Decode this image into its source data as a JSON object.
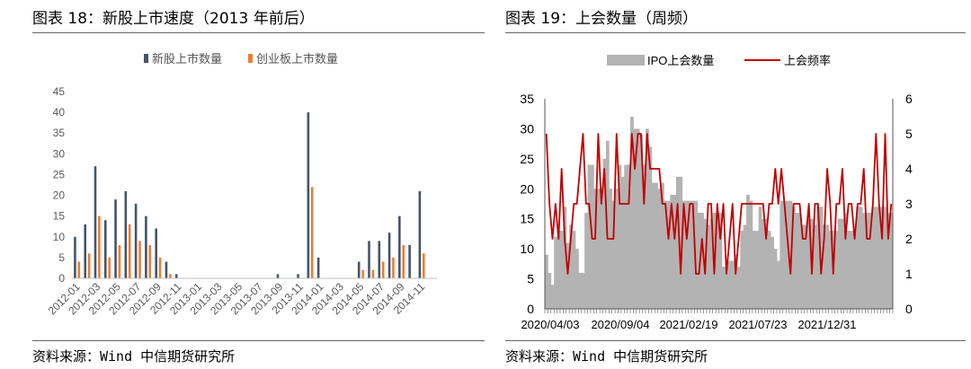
{
  "left_panel": {
    "title": "图表 18：新股上市速度（2013 年前后）",
    "source": "资料来源：Wind  中信期货研究所"
  },
  "right_panel": {
    "title": "图表 19：上会数量（周频）",
    "source": "资料来源：Wind  中信期货研究所"
  },
  "colors": {
    "dark_bar": "#44546a",
    "orange_bar": "#ed7d31",
    "gray_area": "#b3b3b3",
    "red_line": "#c00000"
  },
  "chart_data": [
    {
      "type": "bar",
      "title": "",
      "legend_position": "top",
      "ylim": [
        0,
        45
      ],
      "yticks": [
        0,
        5,
        10,
        15,
        20,
        25,
        30,
        35,
        40,
        45
      ],
      "x_tick_labels": [
        "2012-01",
        "2012-03",
        "2012-05",
        "2012-07",
        "2012-09",
        "2012-11",
        "2013-01",
        "2013-03",
        "2013-05",
        "2013-07",
        "2013-09",
        "2013-11",
        "2014-01",
        "2014-03",
        "2014-05",
        "2014-07",
        "2014-09",
        "2014-11"
      ],
      "categories": [
        "2012-01",
        "2012-02",
        "2012-03",
        "2012-04",
        "2012-05",
        "2012-06",
        "2012-07",
        "2012-08",
        "2012-09",
        "2012-10",
        "2012-11",
        "2012-12",
        "2013-01",
        "2013-02",
        "2013-03",
        "2013-04",
        "2013-05",
        "2013-06",
        "2013-07",
        "2013-08",
        "2013-09",
        "2013-10",
        "2013-11",
        "2013-12",
        "2014-01",
        "2014-02",
        "2014-03",
        "2014-04",
        "2014-05",
        "2014-06",
        "2014-07",
        "2014-08",
        "2014-09",
        "2014-10",
        "2014-11",
        "2014-12"
      ],
      "series": [
        {
          "name": "新股上市数量",
          "values": [
            10,
            13,
            27,
            14,
            19,
            21,
            18,
            15,
            12,
            4,
            1,
            0,
            0,
            0,
            0,
            0,
            0,
            0,
            0,
            0,
            1,
            0,
            1,
            40,
            5,
            0,
            0,
            0,
            4,
            9,
            9,
            11,
            15,
            8,
            21,
            0
          ]
        },
        {
          "name": "创业板上市数量",
          "values": [
            4,
            6,
            15,
            5,
            8,
            13,
            9,
            8,
            5,
            1,
            0,
            0,
            0,
            0,
            0,
            0,
            0,
            0,
            0,
            0,
            0,
            0,
            0,
            22,
            0,
            0,
            0,
            0,
            2,
            2,
            4,
            5,
            8,
            0,
            6,
            0
          ]
        }
      ]
    },
    {
      "type": "bar+line",
      "title": "",
      "legend_position": "top",
      "y_left": [
        0,
        35
      ],
      "y_left_ticks": [
        0,
        5,
        10,
        15,
        20,
        25,
        30,
        35
      ],
      "y_right": [
        0,
        6
      ],
      "y_right_ticks": [
        0,
        1,
        2,
        3,
        4,
        5,
        6
      ],
      "x_tick_labels": [
        "2020/04/03",
        "2020/09/04",
        "2021/02/19",
        "2021/07/23",
        "2021/12/31"
      ],
      "series": [
        {
          "name": "IPO上会数量",
          "axis": "left",
          "values": [
            9,
            6,
            4,
            12,
            13,
            13,
            17,
            11,
            14,
            13,
            10,
            6,
            6,
            16,
            24,
            24,
            20,
            20,
            20,
            25,
            28,
            20,
            18,
            20,
            24,
            22,
            24,
            24,
            32,
            30,
            30,
            29,
            24,
            30,
            27,
            21,
            21,
            20,
            21,
            18,
            18,
            19,
            19,
            22,
            22,
            18,
            18,
            18,
            18,
            18,
            16,
            16,
            15,
            14,
            15,
            16,
            16,
            16,
            7,
            7,
            8,
            8,
            9,
            7,
            13,
            14,
            19,
            18,
            13,
            13,
            17,
            15,
            15,
            13,
            12,
            10,
            8,
            18,
            18,
            18,
            18,
            17,
            16,
            16,
            14,
            14,
            15,
            15,
            14,
            17,
            17,
            14,
            14,
            13,
            13,
            13,
            15,
            15,
            16,
            13,
            13,
            13,
            17,
            17,
            16,
            16,
            16,
            17,
            17,
            17,
            17,
            17,
            16,
            16
          ]
        },
        {
          "name": "上会频率",
          "axis": "right",
          "values": [
            5,
            3,
            2,
            3,
            2,
            4,
            2,
            1,
            2,
            3,
            3,
            4,
            5,
            3,
            3,
            2,
            2,
            5,
            3,
            4,
            2,
            2,
            2,
            5,
            3,
            3,
            3,
            3,
            5,
            4,
            5,
            5,
            3,
            5,
            4,
            4,
            4,
            4,
            3,
            3,
            2,
            3,
            2,
            3,
            1,
            3,
            2,
            3,
            3,
            1,
            1,
            2,
            1,
            3,
            3,
            1,
            3,
            2,
            3,
            1,
            2,
            3,
            1,
            2,
            3,
            3,
            3,
            3,
            3,
            3,
            3,
            3,
            2,
            3,
            3,
            4,
            3,
            4,
            3,
            2,
            1,
            3,
            3,
            3,
            2,
            2,
            3,
            1,
            3,
            3,
            1,
            2,
            4,
            3,
            1,
            3,
            3,
            4,
            2,
            3,
            3,
            2,
            3,
            3,
            4,
            2,
            2,
            3,
            5,
            3,
            2,
            5,
            2,
            3
          ]
        }
      ]
    }
  ]
}
